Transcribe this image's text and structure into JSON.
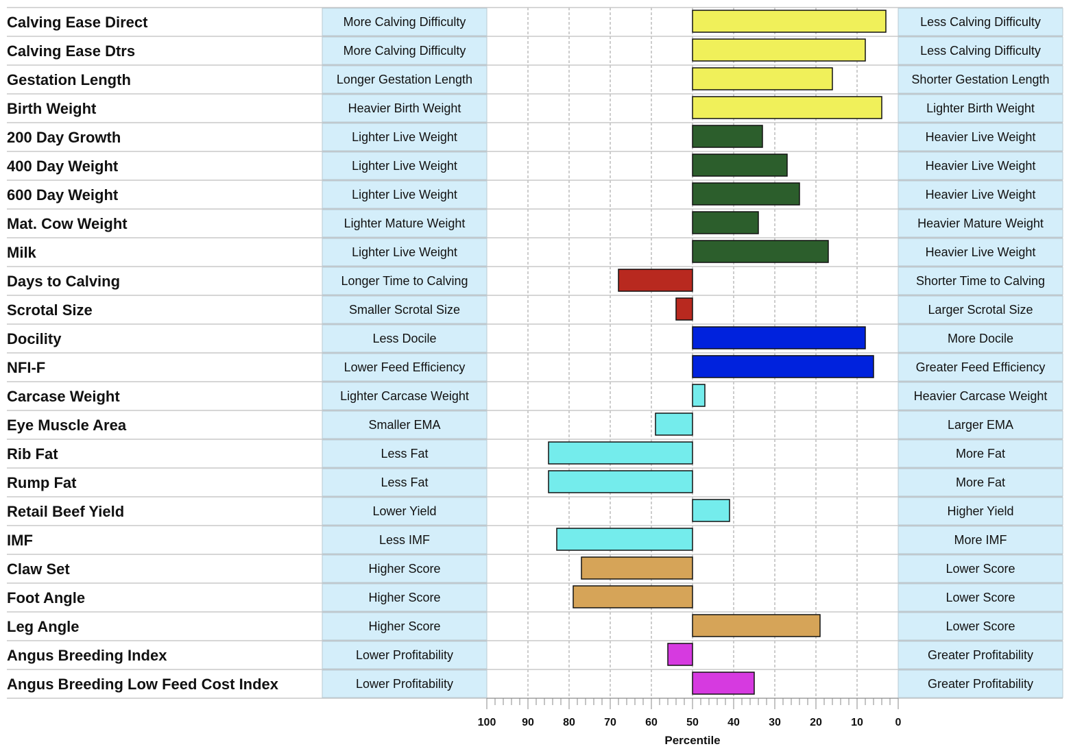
{
  "chart_data": {
    "type": "bar",
    "orientation": "horizontal",
    "xlabel": "Percentile",
    "xlim": [
      100,
      0
    ],
    "baseline": 50,
    "grid": true,
    "x_ticks": [
      "100",
      "90",
      "80",
      "70",
      "60",
      "50",
      "40",
      "30",
      "20",
      "10",
      "0"
    ],
    "colors": {
      "calving": "#f0f05a",
      "growth": "#2c5e2c",
      "fertility": "#b8291f",
      "temperament": "#0022dd",
      "carcase": "#74ecec",
      "structure": "#d6a458",
      "index": "#d63ae0",
      "description_bg": "#d4eefa"
    },
    "rows": [
      {
        "trait": "Calving Ease Direct",
        "low_label": "More Calving Difficulty",
        "high_label": "Less Calving Difficulty",
        "percentile": 3,
        "group": "calving"
      },
      {
        "trait": "Calving Ease Dtrs",
        "low_label": "More Calving Difficulty",
        "high_label": "Less Calving Difficulty",
        "percentile": 8,
        "group": "calving"
      },
      {
        "trait": "Gestation Length",
        "low_label": "Longer Gestation Length",
        "high_label": "Shorter Gestation Length",
        "percentile": 16,
        "group": "calving"
      },
      {
        "trait": "Birth Weight",
        "low_label": "Heavier Birth Weight",
        "high_label": "Lighter Birth Weight",
        "percentile": 4,
        "group": "calving"
      },
      {
        "trait": "200 Day Growth",
        "low_label": "Lighter Live Weight",
        "high_label": "Heavier Live Weight",
        "percentile": 33,
        "group": "growth"
      },
      {
        "trait": "400 Day Weight",
        "low_label": "Lighter Live Weight",
        "high_label": "Heavier Live Weight",
        "percentile": 27,
        "group": "growth"
      },
      {
        "trait": "600 Day Weight",
        "low_label": "Lighter Live Weight",
        "high_label": "Heavier Live Weight",
        "percentile": 24,
        "group": "growth"
      },
      {
        "trait": "Mat. Cow Weight",
        "low_label": "Lighter Mature Weight",
        "high_label": "Heavier Mature Weight",
        "percentile": 34,
        "group": "growth"
      },
      {
        "trait": "Milk",
        "low_label": "Lighter Live Weight",
        "high_label": "Heavier Live Weight",
        "percentile": 17,
        "group": "growth"
      },
      {
        "trait": "Days to Calving",
        "low_label": "Longer Time to Calving",
        "high_label": "Shorter Time to Calving",
        "percentile": 68,
        "group": "fertility"
      },
      {
        "trait": "Scrotal Size",
        "low_label": "Smaller Scrotal Size",
        "high_label": "Larger Scrotal Size",
        "percentile": 54,
        "group": "fertility"
      },
      {
        "trait": "Docility",
        "low_label": "Less Docile",
        "high_label": "More Docile",
        "percentile": 8,
        "group": "temperament"
      },
      {
        "trait": "NFI-F",
        "low_label": "Lower Feed Efficiency",
        "high_label": "Greater Feed Efficiency",
        "percentile": 6,
        "group": "temperament"
      },
      {
        "trait": "Carcase Weight",
        "low_label": "Lighter Carcase Weight",
        "high_label": "Heavier Carcase Weight",
        "percentile": 47,
        "group": "carcase"
      },
      {
        "trait": "Eye Muscle Area",
        "low_label": "Smaller EMA",
        "high_label": "Larger EMA",
        "percentile": 59,
        "group": "carcase"
      },
      {
        "trait": "Rib Fat",
        "low_label": "Less Fat",
        "high_label": "More Fat",
        "percentile": 85,
        "group": "carcase"
      },
      {
        "trait": "Rump Fat",
        "low_label": "Less Fat",
        "high_label": "More Fat",
        "percentile": 85,
        "group": "carcase"
      },
      {
        "trait": "Retail Beef Yield",
        "low_label": "Lower Yield",
        "high_label": "Higher Yield",
        "percentile": 41,
        "group": "carcase"
      },
      {
        "trait": "IMF",
        "low_label": "Less IMF",
        "high_label": "More IMF",
        "percentile": 83,
        "group": "carcase"
      },
      {
        "trait": "Claw Set",
        "low_label": "Higher Score",
        "high_label": "Lower Score",
        "percentile": 77,
        "group": "structure"
      },
      {
        "trait": "Foot Angle",
        "low_label": "Higher Score",
        "high_label": "Lower Score",
        "percentile": 79,
        "group": "structure"
      },
      {
        "trait": "Leg Angle",
        "low_label": "Higher Score",
        "high_label": "Lower Score",
        "percentile": 19,
        "group": "structure"
      },
      {
        "trait": "Angus Breeding Index",
        "low_label": "Lower Profitability",
        "high_label": "Greater Profitability",
        "percentile": 56,
        "group": "index"
      },
      {
        "trait": "Angus Breeding Low Feed Cost Index",
        "low_label": "Lower Profitability",
        "high_label": "Greater Profitability",
        "percentile": 35,
        "group": "index"
      }
    ]
  }
}
